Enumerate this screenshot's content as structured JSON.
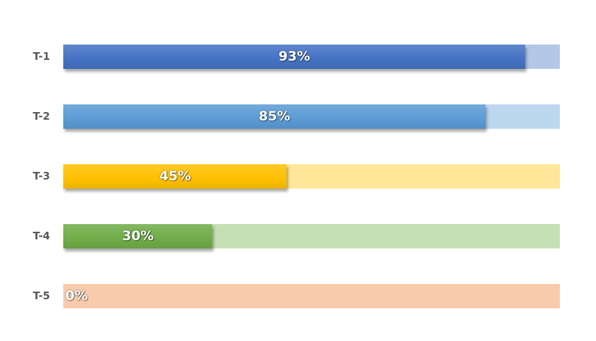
{
  "chart_data": {
    "type": "bar",
    "orientation": "horizontal",
    "categories": [
      "T-1",
      "T-2",
      "T-3",
      "T-4",
      "T-5"
    ],
    "values": [
      93,
      85,
      45,
      30,
      0
    ],
    "data_labels": [
      "93%",
      "85%",
      "45%",
      "30%",
      "0%"
    ],
    "xlim": [
      0,
      100
    ],
    "grid": false,
    "colors": [
      "#4472c4",
      "#5b9bd5",
      "#ffc000",
      "#70ad47",
      "#ed7d31"
    ],
    "track_colors": [
      "#b4c7e7",
      "#bdd7ee",
      "#ffe699",
      "#c5e0b4",
      "#f8cbad"
    ]
  }
}
